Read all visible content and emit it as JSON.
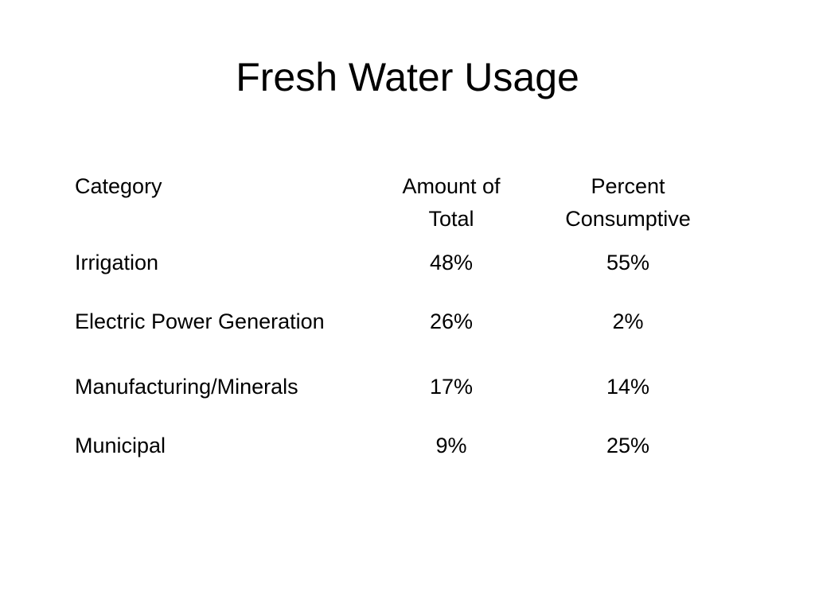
{
  "slide": {
    "title": "Fresh Water Usage"
  },
  "table": {
    "headers": {
      "category": "Category",
      "amount": "Amount of Total",
      "percent": "Percent Consumptive"
    },
    "rows": [
      {
        "category": "Irrigation",
        "amount": "48%",
        "percent": "55%"
      },
      {
        "category": "Electric Power Generation",
        "amount": "26%",
        "percent": "2%"
      },
      {
        "category": "Manufacturing/Minerals",
        "amount": "17%",
        "percent": "14%"
      },
      {
        "category": "Municipal",
        "amount": "9%",
        "percent": "25%"
      }
    ]
  }
}
